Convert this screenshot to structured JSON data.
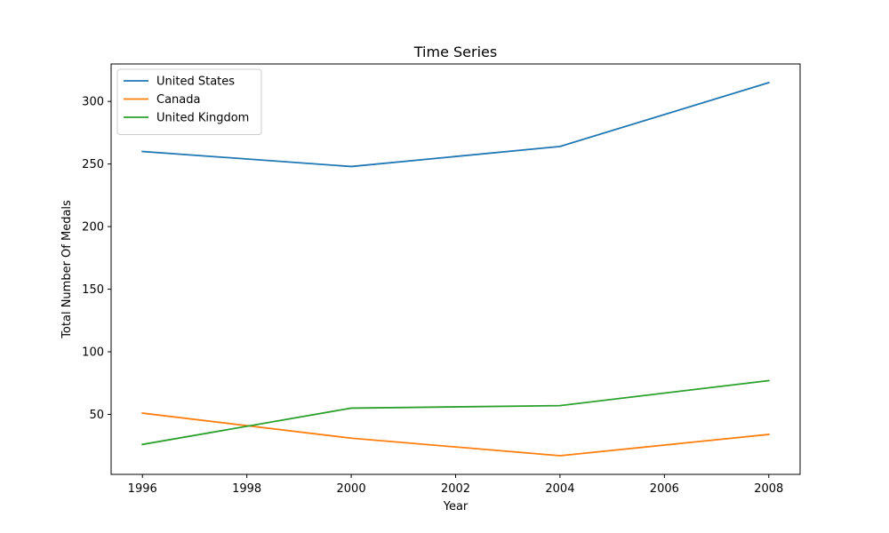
{
  "chart_data": {
    "type": "line",
    "title": "Time Series",
    "xlabel": "Year",
    "ylabel": "Total Number Of Medals",
    "x": [
      1996,
      2000,
      2004,
      2008
    ],
    "series": [
      {
        "name": "United States",
        "color": "#1f77b4",
        "values": [
          260,
          248,
          264,
          315
        ]
      },
      {
        "name": "Canada",
        "color": "#ff7f0e",
        "values": [
          51,
          31,
          17,
          34
        ]
      },
      {
        "name": "United Kingdom",
        "color": "#2ca02c",
        "values": [
          26,
          55,
          57,
          77
        ]
      }
    ],
    "xlim": [
      1995.4,
      2008.6
    ],
    "ylim": [
      2.1,
      329.9
    ],
    "xticks": [
      1996,
      1998,
      2000,
      2002,
      2004,
      2006,
      2008
    ],
    "yticks": [
      50,
      100,
      150,
      200,
      250,
      300
    ],
    "legend": "top-left",
    "grid": false
  }
}
